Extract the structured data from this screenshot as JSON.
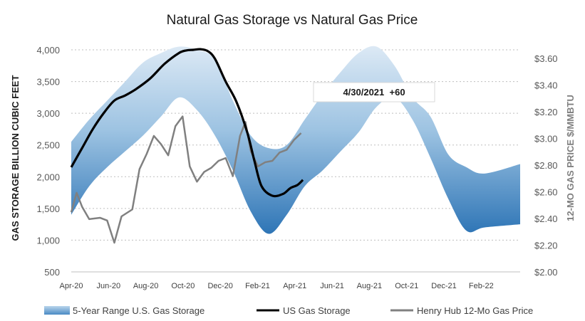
{
  "chart_data": {
    "type": "line",
    "title": "Natural Gas Storage vs Natural Gas Price",
    "ylabel": "GAS STORAGE BILLION CUBIC FEET",
    "y2label": "12-MO GAS PRICE $/MMBTU",
    "ylim": [
      500,
      4000
    ],
    "y2lim": [
      2.0,
      3.6
    ],
    "yticks": [
      "4,000",
      "3,500",
      "3,000",
      "2,500",
      "2,000",
      "1,500",
      "1,000",
      "500"
    ],
    "y2ticks": [
      "$3.60",
      "$3.40",
      "$3.20",
      "$3.00",
      "$2.80",
      "$2.60",
      "$2.40",
      "$2.20",
      "$2.00"
    ],
    "xticks": [
      "Apr-20",
      "Jun-20",
      "Aug-20",
      "Oct-20",
      "Dec-20",
      "Feb-21",
      "Apr-21",
      "Jun-21",
      "Aug-21",
      "Oct-21",
      "Dec-21",
      "Feb-22"
    ],
    "grid": true,
    "legend_position": "bottom",
    "annotation": "4/30/2021  +60",
    "series": [
      {
        "name": "5-Year Range U.S. Gas Storage",
        "kind": "band",
        "color": "#2e75b6",
        "x": [
          0,
          0.5,
          1,
          1.5,
          2,
          2.5,
          3,
          3.5,
          4,
          4.5,
          5,
          5.5,
          6,
          6.5,
          7,
          7.5,
          8,
          8.5,
          9,
          9.5,
          10,
          10.5,
          11,
          11.5,
          12.5
        ],
        "low": [
          1400,
          1850,
          2150,
          2400,
          2650,
          2950,
          3250,
          3050,
          2650,
          2100,
          1450,
          1100,
          1400,
          1850,
          2100,
          2400,
          2700,
          3100,
          3250,
          2900,
          2300,
          1650,
          1150,
          1200,
          1250
        ],
        "high": [
          2550,
          2900,
          3200,
          3500,
          3800,
          3950,
          4050,
          4000,
          3850,
          3200,
          2650,
          2450,
          2500,
          2900,
          3300,
          3650,
          3950,
          4050,
          3750,
          3250,
          2950,
          2350,
          2150,
          2050,
          2200
        ]
      },
      {
        "name": "US Gas Storage",
        "color": "#000000",
        "x": [
          0,
          0.3,
          0.6,
          0.9,
          1.2,
          1.5,
          1.8,
          2.2,
          2.6,
          3.0,
          3.2,
          3.4,
          3.6,
          3.8,
          4.0,
          4.3,
          4.6,
          4.9,
          5.1,
          5.3,
          5.6,
          5.9,
          6.1,
          6.3,
          6.45
        ],
        "values": [
          2150,
          2450,
          2750,
          3000,
          3200,
          3280,
          3380,
          3550,
          3780,
          3950,
          3990,
          4000,
          4010,
          3980,
          3860,
          3500,
          3180,
          2700,
          2250,
          1850,
          1700,
          1730,
          1820,
          1870,
          1950
        ]
      },
      {
        "name": "Henry Hub 12-Mo Gas Price",
        "color": "#808080",
        "axis": "right",
        "x": [
          0,
          0.15,
          0.3,
          0.5,
          0.8,
          1.0,
          1.2,
          1.4,
          1.7,
          1.9,
          2.1,
          2.3,
          2.5,
          2.7,
          2.9,
          3.1,
          3.3,
          3.5,
          3.7,
          3.9,
          4.1,
          4.3,
          4.5,
          4.7,
          4.85,
          5.0,
          5.2,
          5.4,
          5.6,
          5.8,
          6.0,
          6.2,
          6.4
        ],
        "values": [
          2.43,
          2.57,
          2.47,
          2.38,
          2.39,
          2.37,
          2.21,
          2.4,
          2.45,
          2.74,
          2.85,
          2.98,
          2.92,
          2.84,
          3.05,
          3.12,
          2.76,
          2.65,
          2.72,
          2.75,
          2.8,
          2.82,
          2.69,
          2.98,
          3.08,
          2.87,
          2.76,
          2.79,
          2.8,
          2.86,
          2.88,
          2.95,
          3.0
        ]
      }
    ]
  }
}
